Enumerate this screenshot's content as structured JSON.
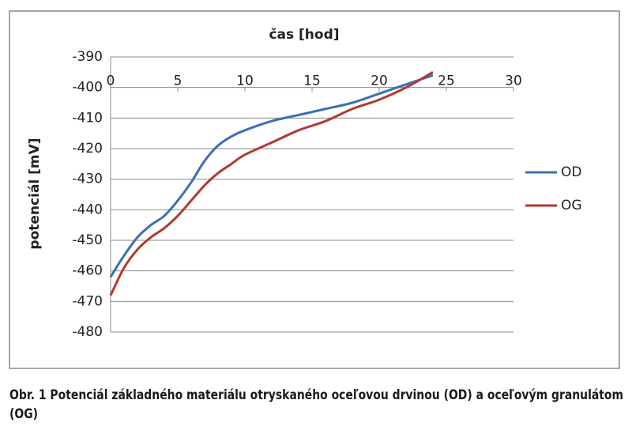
{
  "chart_data": {
    "type": "line",
    "x_label": "čas [hod]",
    "y_label": "potenciál [mV]",
    "x": [
      0,
      1,
      2,
      3,
      4,
      5,
      6,
      7,
      8,
      9,
      10,
      12,
      14,
      16,
      18,
      20,
      22,
      24
    ],
    "series": [
      {
        "name": "OD",
        "color": "#3b6fb3",
        "values": [
          -462,
          -455,
          -449,
          -445,
          -442,
          -437,
          -431,
          -424,
          -419,
          -416,
          -414,
          -411,
          -409,
          -407,
          -405,
          -402,
          -399,
          -396
        ]
      },
      {
        "name": "OG",
        "color": "#b03a32",
        "values": [
          -468,
          -459,
          -453,
          -449,
          -446,
          -442,
          -437,
          -432,
          -428,
          -425,
          -422,
          -418,
          -414,
          -411,
          -407,
          -404,
          -400,
          -395
        ]
      }
    ],
    "xlim": [
      0,
      30
    ],
    "xticks": [
      0,
      5,
      10,
      15,
      20,
      25,
      30
    ],
    "ylim": [
      -480,
      -390
    ],
    "yticks": [
      -390,
      -400,
      -410,
      -420,
      -430,
      -440,
      -450,
      -460,
      -470,
      -480
    ],
    "grid": true,
    "legend": "right"
  },
  "caption": "Obr. 1 Potenciál základného materiálu otryskaného oceľovou drvinou (OD) a oceľovým granulátom (OG)"
}
